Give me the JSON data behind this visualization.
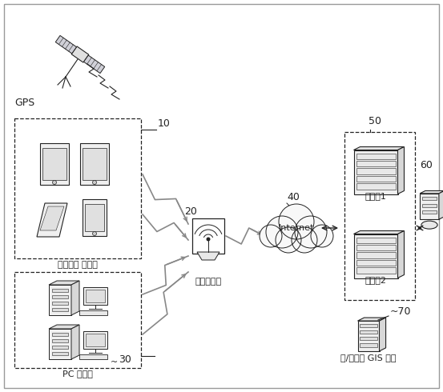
{
  "background_color": "#ffffff",
  "text_color": "#222222",
  "fig_width": 5.53,
  "fig_height": 4.9,
  "dpi": 100,
  "labels": {
    "gps": "GPS",
    "smartphone_user": "스마트폰 사용자",
    "wireless_relay": "무선중계기",
    "internet": "Internet",
    "webserver1": "웹서버1",
    "webserver2": "웹서버2",
    "pc_user": "PC 사용자",
    "gis_server": "웹/모바일 GIS 서비",
    "num10": "10",
    "num20": "20",
    "num30": "30",
    "num40": "40",
    "num50": "50",
    "num60": "60",
    "num70": "70"
  }
}
